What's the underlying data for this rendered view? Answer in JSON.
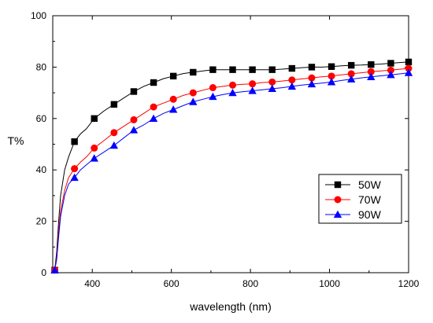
{
  "chart_data": {
    "type": "line",
    "title": "",
    "xlabel": "wavelength (nm)",
    "ylabel": "T%",
    "xlim": [
      300,
      1200
    ],
    "ylim": [
      0,
      100
    ],
    "x_ticks": [
      400,
      600,
      800,
      1000,
      1200
    ],
    "y_ticks": [
      0,
      20,
      40,
      60,
      80,
      100
    ],
    "grid": false,
    "legend_position": "lower-right",
    "series": [
      {
        "name": "50W",
        "color": "#000000",
        "marker": "square",
        "x": [
          300,
          305,
          310,
          315,
          320,
          330,
          340,
          355,
          370,
          385,
          405,
          430,
          455,
          480,
          505,
          530,
          555,
          580,
          605,
          630,
          655,
          680,
          705,
          730,
          755,
          780,
          805,
          830,
          855,
          880,
          905,
          930,
          955,
          980,
          1005,
          1030,
          1055,
          1080,
          1105,
          1130,
          1155,
          1180,
          1200
        ],
        "y": [
          0.5,
          1,
          8,
          20,
          30,
          40,
          45,
          51,
          54,
          56,
          60,
          63,
          65.5,
          68,
          70.5,
          72.5,
          74,
          75.5,
          76.5,
          77.5,
          78,
          78.5,
          79,
          79,
          79,
          79,
          79,
          79,
          79,
          79.2,
          79.5,
          79.8,
          80,
          80,
          80.2,
          80.5,
          80.7,
          80.8,
          81,
          81.2,
          81.5,
          81.8,
          82
        ],
        "marker_x": [
          305,
          355,
          405,
          455,
          505,
          555,
          605,
          655,
          705,
          755,
          805,
          855,
          905,
          955,
          1005,
          1055,
          1105,
          1155,
          1200
        ],
        "marker_y": [
          1,
          51,
          60,
          65.5,
          70.5,
          74,
          76.5,
          78,
          79,
          79,
          79,
          79,
          79.5,
          80,
          80.2,
          80.7,
          81,
          81.5,
          82
        ]
      },
      {
        "name": "70W",
        "color": "#ff0000",
        "marker": "circle",
        "x": [
          300,
          305,
          310,
          315,
          320,
          330,
          340,
          355,
          370,
          385,
          405,
          430,
          455,
          480,
          505,
          530,
          555,
          580,
          605,
          630,
          655,
          680,
          705,
          730,
          755,
          780,
          805,
          830,
          855,
          880,
          905,
          930,
          955,
          980,
          1005,
          1030,
          1055,
          1080,
          1105,
          1130,
          1155,
          1180,
          1200
        ],
        "y": [
          0.5,
          1,
          6,
          16,
          24,
          32,
          37,
          40.5,
          43,
          45,
          48.5,
          51.5,
          54.5,
          57,
          59.5,
          62,
          64.5,
          66,
          67.5,
          69,
          70,
          71,
          72,
          72.5,
          73,
          73.3,
          73.5,
          74,
          74.2,
          74.6,
          75,
          75.4,
          75.8,
          76.2,
          76.5,
          77,
          77.4,
          77.8,
          78.2,
          78.5,
          78.8,
          79.2,
          79.5
        ],
        "marker_x": [
          305,
          355,
          405,
          455,
          505,
          555,
          605,
          655,
          705,
          755,
          805,
          855,
          905,
          955,
          1005,
          1055,
          1105,
          1155,
          1200
        ],
        "marker_y": [
          1,
          40.5,
          48.5,
          54.5,
          59.5,
          64.5,
          67.5,
          70,
          72,
          73,
          73.5,
          74.2,
          75,
          75.8,
          76.5,
          77.4,
          78.2,
          78.8,
          79.5
        ]
      },
      {
        "name": "90W",
        "color": "#0000ff",
        "marker": "triangle",
        "x": [
          300,
          305,
          310,
          315,
          320,
          330,
          340,
          355,
          370,
          385,
          405,
          430,
          455,
          480,
          505,
          530,
          555,
          580,
          605,
          630,
          655,
          680,
          705,
          730,
          755,
          780,
          805,
          830,
          855,
          880,
          905,
          930,
          955,
          980,
          1005,
          1030,
          1055,
          1080,
          1105,
          1130,
          1155,
          1180,
          1200
        ],
        "y": [
          0.5,
          1,
          5,
          14,
          22,
          30,
          34.5,
          37,
          40,
          42,
          44.5,
          47,
          49.5,
          52.5,
          55.5,
          57.5,
          60,
          62,
          63.5,
          65,
          66.5,
          67.5,
          68.5,
          69.3,
          70,
          70.4,
          70.8,
          71.2,
          71.6,
          72,
          72.5,
          73,
          73.4,
          73.8,
          74.2,
          74.8,
          75.3,
          75.8,
          76.2,
          76.6,
          77,
          77.4,
          77.8
        ],
        "marker_x": [
          305,
          355,
          405,
          455,
          505,
          555,
          605,
          655,
          705,
          755,
          805,
          855,
          905,
          955,
          1005,
          1055,
          1105,
          1155,
          1200
        ],
        "marker_y": [
          1,
          37,
          44.5,
          49.5,
          55.5,
          60,
          63.5,
          66.5,
          68.5,
          70,
          70.8,
          71.6,
          72.5,
          73.4,
          74.2,
          75.3,
          76.2,
          77,
          77.8
        ]
      }
    ]
  }
}
